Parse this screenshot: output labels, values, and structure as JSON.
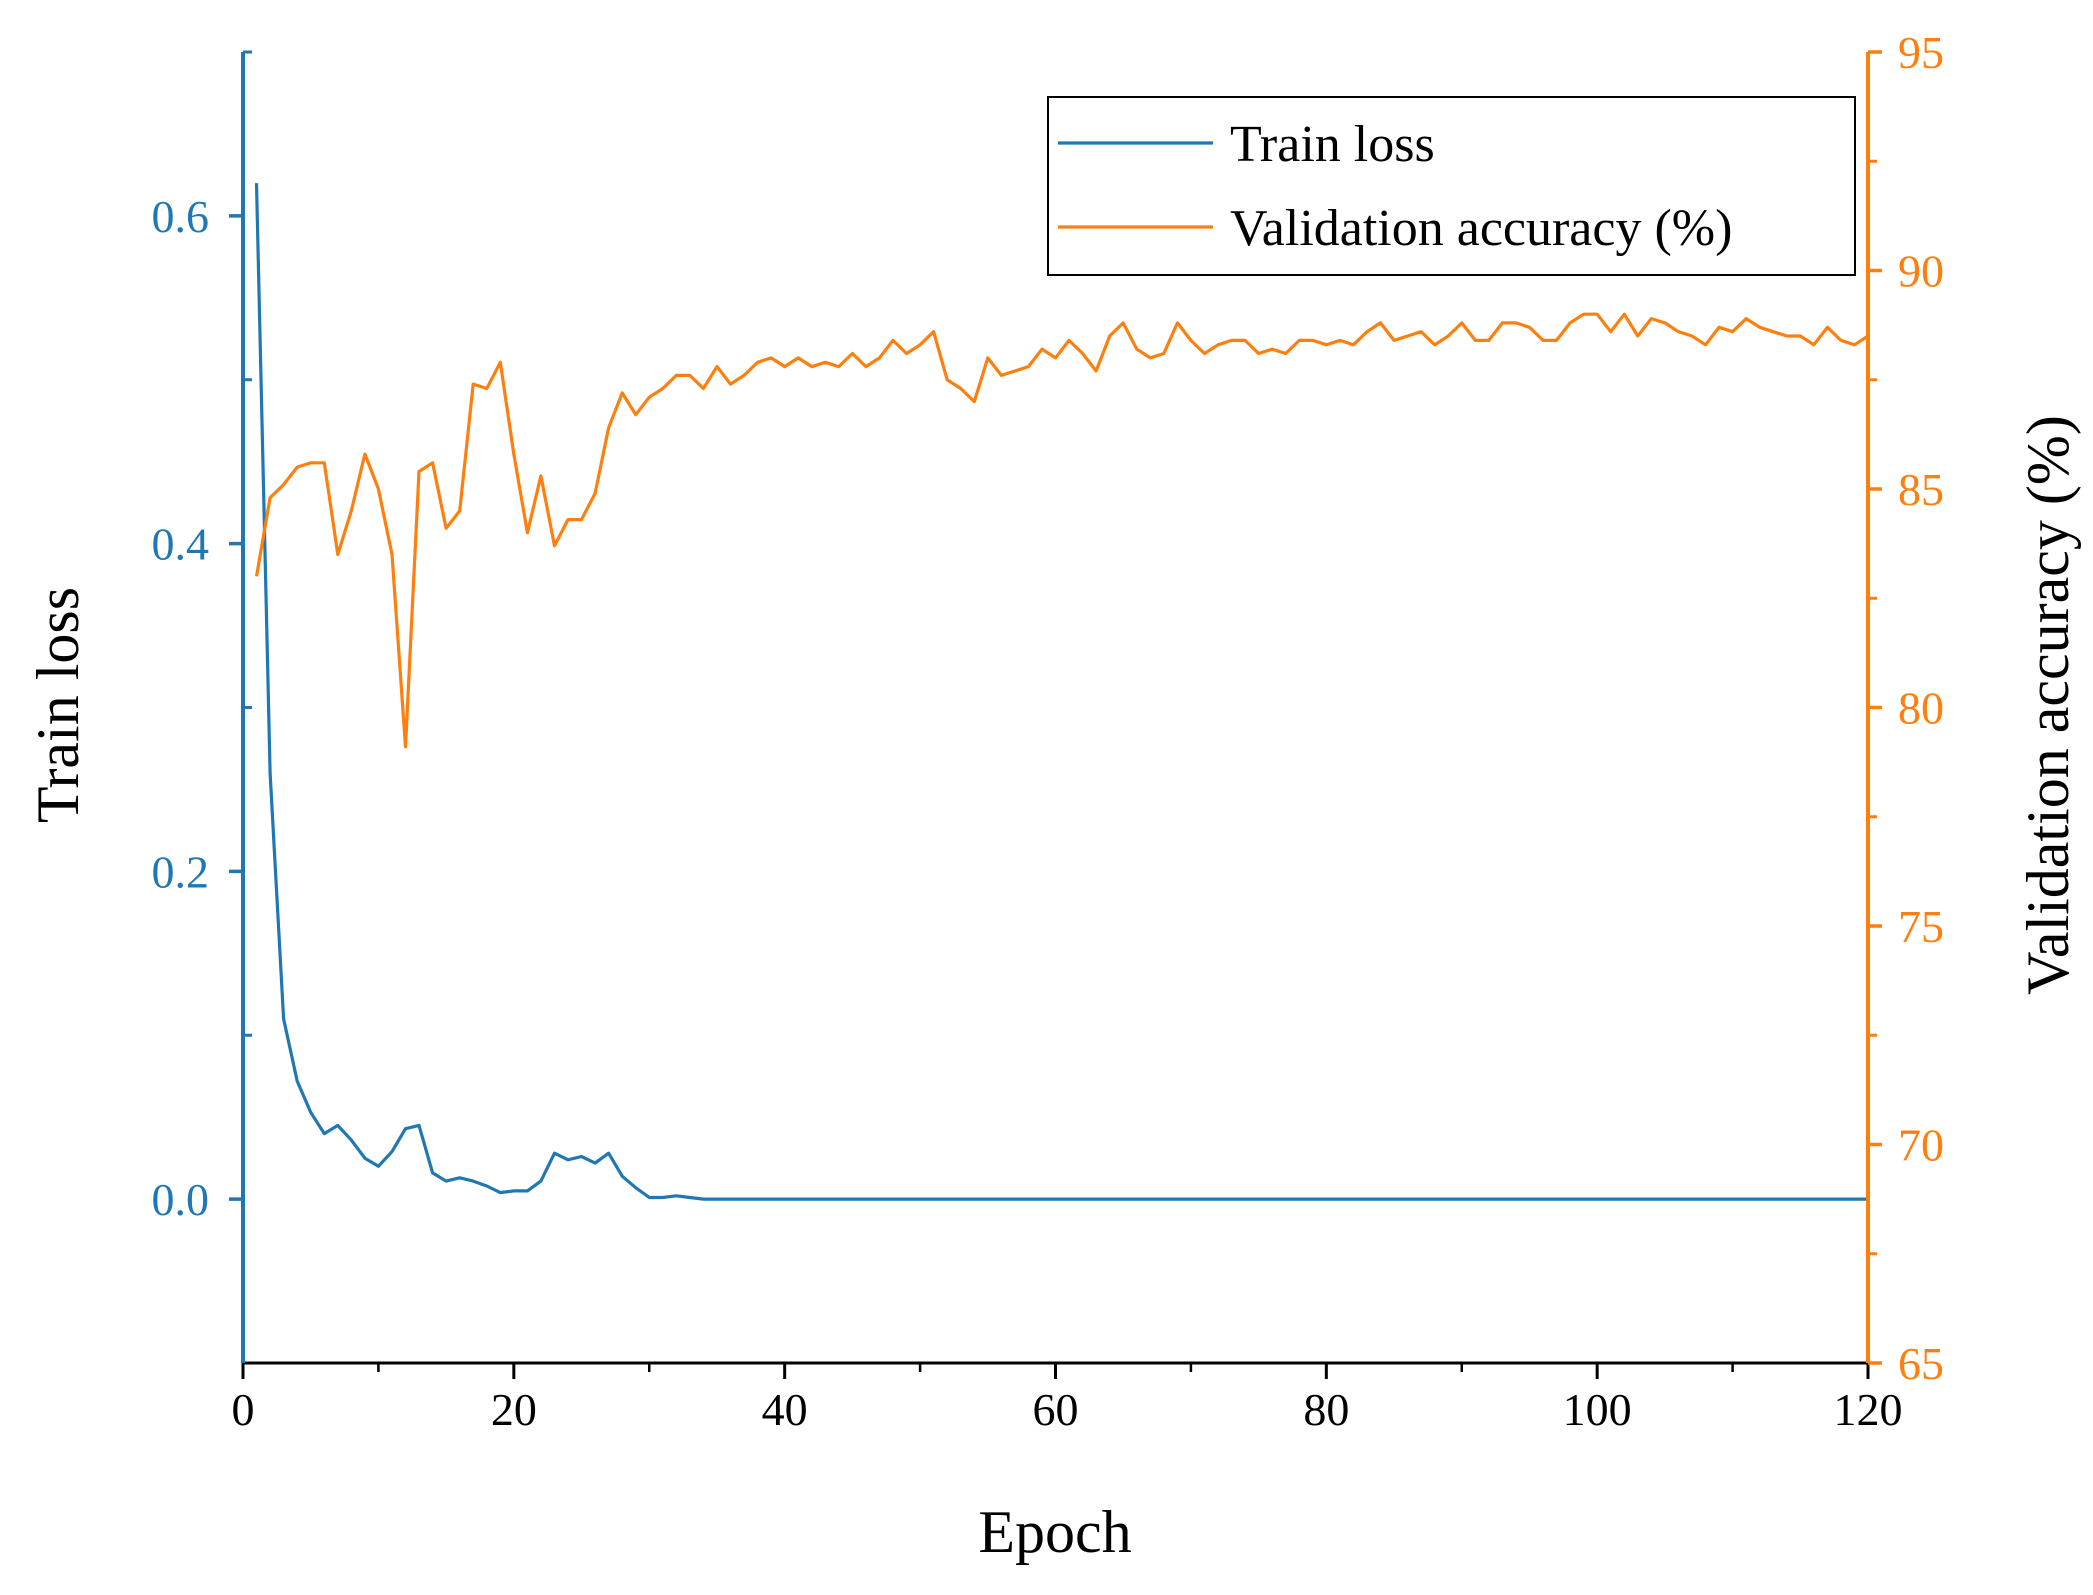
{
  "chart_data": {
    "type": "line",
    "title": "",
    "xlabel": "Epoch",
    "ylabel_left": "Train loss",
    "ylabel_right": "Validation accuracy (%)",
    "xlim": [
      0,
      120
    ],
    "ylim_left": [
      -0.1,
      0.7
    ],
    "ylim_right": [
      65,
      95
    ],
    "x_ticks": [
      "0",
      "20",
      "40",
      "60",
      "80",
      "100",
      "120"
    ],
    "x_tick_values": [
      0,
      20,
      40,
      60,
      80,
      100,
      120
    ],
    "y_left_ticks": [
      "0.0",
      "0.2",
      "0.4",
      "0.6"
    ],
    "y_left_tick_values": [
      0.0,
      0.2,
      0.4,
      0.6
    ],
    "y_right_ticks": [
      "65",
      "70",
      "75",
      "80",
      "85",
      "90",
      "95"
    ],
    "y_right_tick_values": [
      65,
      70,
      75,
      80,
      85,
      90,
      95
    ],
    "legend": {
      "position": "top-right",
      "entries": [
        "Train loss",
        "Validation accuracy (%)"
      ]
    },
    "colors": {
      "train_loss": "#1f77b4",
      "val_acc": "#ff7f0e"
    },
    "series": [
      {
        "name": "Train loss",
        "axis": "left",
        "x": [
          1,
          2,
          3,
          4,
          5,
          6,
          7,
          8,
          9,
          10,
          11,
          12,
          13,
          14,
          15,
          16,
          17,
          18,
          19,
          20,
          21,
          22,
          23,
          24,
          25,
          26,
          27,
          28,
          29,
          30,
          31,
          32,
          33,
          34,
          35,
          40,
          50,
          60,
          70,
          80,
          90,
          100,
          110,
          120
        ],
        "values": [
          0.62,
          0.26,
          0.11,
          0.072,
          0.053,
          0.04,
          0.045,
          0.036,
          0.025,
          0.02,
          0.029,
          0.043,
          0.045,
          0.016,
          0.011,
          0.013,
          0.011,
          0.008,
          0.004,
          0.005,
          0.005,
          0.011,
          0.028,
          0.024,
          0.026,
          0.022,
          0.028,
          0.014,
          0.007,
          0.001,
          0.001,
          0.002,
          0.001,
          0.0,
          0.0,
          0.0,
          0.0,
          0.0,
          0.0,
          0.0,
          0.0,
          0.0,
          0.0,
          0.0
        ]
      },
      {
        "name": "Validation accuracy (%)",
        "axis": "right",
        "x": [
          1,
          2,
          3,
          4,
          5,
          6,
          7,
          8,
          9,
          10,
          11,
          12,
          13,
          14,
          15,
          16,
          17,
          18,
          19,
          20,
          21,
          22,
          23,
          24,
          25,
          26,
          27,
          28,
          29,
          30,
          31,
          32,
          33,
          34,
          35,
          36,
          37,
          38,
          39,
          40,
          41,
          42,
          43,
          44,
          45,
          46,
          47,
          48,
          49,
          50,
          51,
          52,
          53,
          54,
          55,
          56,
          57,
          58,
          59,
          60,
          61,
          62,
          63,
          64,
          65,
          66,
          67,
          68,
          69,
          70,
          71,
          72,
          73,
          74,
          75,
          76,
          77,
          78,
          79,
          80,
          81,
          82,
          83,
          84,
          85,
          86,
          87,
          88,
          89,
          90,
          91,
          92,
          93,
          94,
          95,
          96,
          97,
          98,
          99,
          100,
          101,
          102,
          103,
          104,
          105,
          106,
          107,
          108,
          109,
          110,
          111,
          112,
          113,
          114,
          115,
          116,
          117,
          118,
          119,
          120
        ],
        "values": [
          83.0,
          84.8,
          85.1,
          85.5,
          85.6,
          85.6,
          83.5,
          84.5,
          85.8,
          85.0,
          83.5,
          79.1,
          85.4,
          85.6,
          84.1,
          84.5,
          87.4,
          87.3,
          87.9,
          85.8,
          84.0,
          85.3,
          83.7,
          84.3,
          84.3,
          84.9,
          86.4,
          87.2,
          86.7,
          87.1,
          87.3,
          87.6,
          87.6,
          87.3,
          87.8,
          87.4,
          87.6,
          87.9,
          88.0,
          87.8,
          88.0,
          87.8,
          87.9,
          87.8,
          88.1,
          87.8,
          88.0,
          88.4,
          88.1,
          88.3,
          88.6,
          87.5,
          87.3,
          87.0,
          88.0,
          87.6,
          87.7,
          87.8,
          88.2,
          88.0,
          88.4,
          88.1,
          87.7,
          88.5,
          88.8,
          88.2,
          88.0,
          88.1,
          88.8,
          88.4,
          88.1,
          88.3,
          88.4,
          88.4,
          88.1,
          88.2,
          88.1,
          88.4,
          88.4,
          88.3,
          88.4,
          88.3,
          88.6,
          88.8,
          88.4,
          88.5,
          88.6,
          88.3,
          88.5,
          88.8,
          88.4,
          88.4,
          88.8,
          88.8,
          88.7,
          88.4,
          88.4,
          88.8,
          89.0,
          89.0,
          88.6,
          89.0,
          88.5,
          88.9,
          88.8,
          88.6,
          88.5,
          88.3,
          88.7,
          88.6,
          88.9,
          88.7,
          88.6,
          88.5,
          88.5,
          88.3,
          88.7,
          88.4,
          88.3,
          88.5
        ]
      }
    ]
  }
}
